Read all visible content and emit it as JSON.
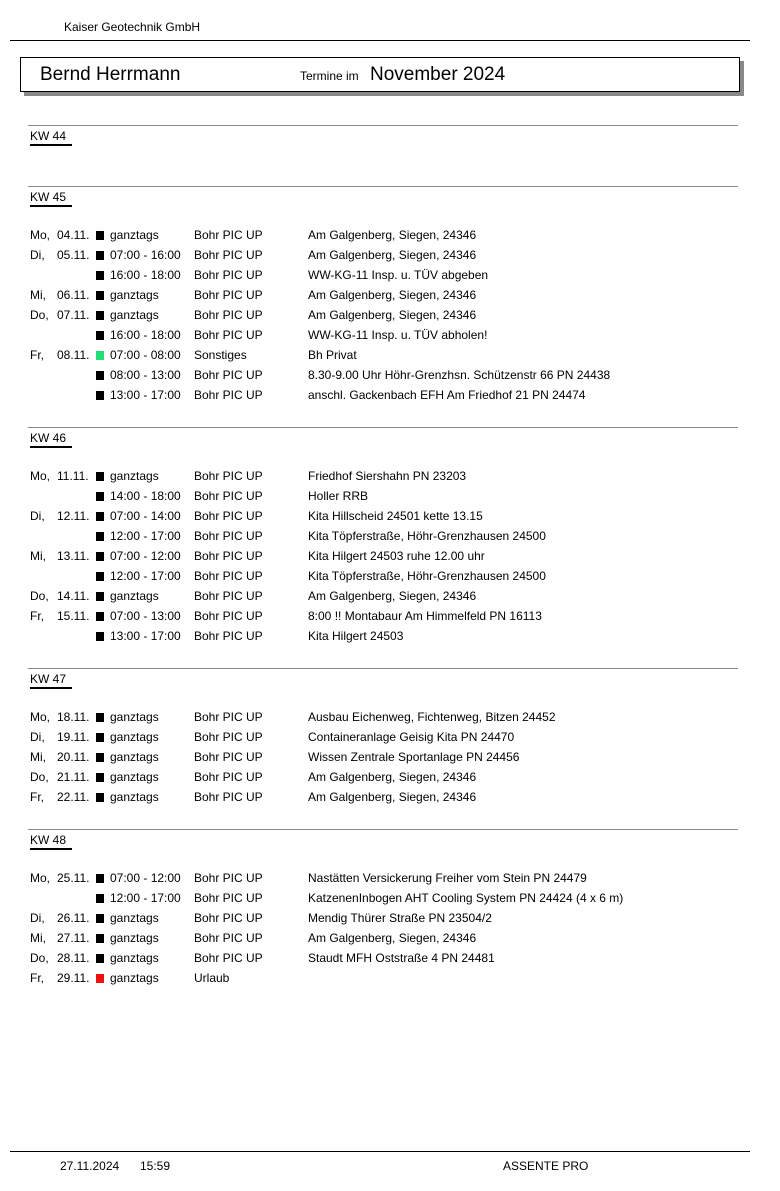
{
  "company": "Kaiser Geotechnik GmbH",
  "header": {
    "name": "Bernd Herrmann",
    "label": "Termine im",
    "month": "November 2024"
  },
  "colors": {
    "default": "#000000",
    "sonstiges": "#22dd77",
    "urlaub": "#ee1111"
  },
  "weeks": [
    {
      "label": "KW 44",
      "rows": []
    },
    {
      "label": "KW 45",
      "rows": [
        {
          "day": "Mo,",
          "date": "04.11.",
          "color": "#000000",
          "time": "ganztags",
          "cat": "Bohr PIC UP",
          "desc": "Am Galgenberg, Siegen, 24346"
        },
        {
          "day": "Di,",
          "date": "05.11.",
          "color": "#000000",
          "time": "07:00 - 16:00",
          "cat": "Bohr PIC UP",
          "desc": "Am Galgenberg, Siegen, 24346"
        },
        {
          "day": "",
          "date": "",
          "color": "#000000",
          "time": "16:00 - 18:00",
          "cat": "Bohr PIC UP",
          "desc": "WW-KG-11 Insp. u. TÜV abgeben"
        },
        {
          "day": "Mi,",
          "date": "06.11.",
          "color": "#000000",
          "time": "ganztags",
          "cat": "Bohr PIC UP",
          "desc": "Am Galgenberg, Siegen, 24346"
        },
        {
          "day": "Do,",
          "date": "07.11.",
          "color": "#000000",
          "time": "ganztags",
          "cat": "Bohr PIC UP",
          "desc": "Am Galgenberg, Siegen, 24346"
        },
        {
          "day": "",
          "date": "",
          "color": "#000000",
          "time": "16:00 - 18:00",
          "cat": "Bohr PIC UP",
          "desc": "WW-KG-11 Insp. u. TÜV abholen!"
        },
        {
          "day": "Fr,",
          "date": "08.11.",
          "color": "#22dd77",
          "time": "07:00 - 08:00",
          "cat": "Sonstiges",
          "desc": "Bh Privat"
        },
        {
          "day": "",
          "date": "",
          "color": "#000000",
          "time": "08:00 - 13:00",
          "cat": "Bohr PIC UP",
          "desc": "8.30-9.00 Uhr Höhr-Grenzhsn. Schützenstr 66 PN 24438"
        },
        {
          "day": "",
          "date": "",
          "color": "#000000",
          "time": "13:00 - 17:00",
          "cat": "Bohr PIC UP",
          "desc": "anschl. Gackenbach EFH Am Friedhof 21 PN 24474"
        }
      ]
    },
    {
      "label": "KW 46",
      "rows": [
        {
          "day": "Mo,",
          "date": "11.11.",
          "color": "#000000",
          "time": "ganztags",
          "cat": "Bohr PIC UP",
          "desc": "Friedhof Siershahn PN 23203"
        },
        {
          "day": "",
          "date": "",
          "color": "#000000",
          "time": "14:00 - 18:00",
          "cat": "Bohr PIC UP",
          "desc": "Holler RRB"
        },
        {
          "day": "Di,",
          "date": "12.11.",
          "color": "#000000",
          "time": "07:00 - 14:00",
          "cat": "Bohr PIC UP",
          "desc": "Kita Hillscheid 24501 kette 13.15"
        },
        {
          "day": "",
          "date": "",
          "color": "#000000",
          "time": "12:00 - 17:00",
          "cat": "Bohr PIC UP",
          "desc": "Kita Töpferstraße, Höhr-Grenzhausen 24500"
        },
        {
          "day": "Mi,",
          "date": "13.11.",
          "color": "#000000",
          "time": "07:00 - 12:00",
          "cat": "Bohr PIC UP",
          "desc": "Kita Hilgert 24503 ruhe 12.00 uhr"
        },
        {
          "day": "",
          "date": "",
          "color": "#000000",
          "time": "12:00 - 17:00",
          "cat": "Bohr PIC UP",
          "desc": "Kita Töpferstraße, Höhr-Grenzhausen 24500"
        },
        {
          "day": "Do,",
          "date": "14.11.",
          "color": "#000000",
          "time": "ganztags",
          "cat": "Bohr PIC UP",
          "desc": "Am Galgenberg, Siegen, 24346"
        },
        {
          "day": "Fr,",
          "date": "15.11.",
          "color": "#000000",
          "time": "07:00 - 13:00",
          "cat": "Bohr PIC UP",
          "desc": "8:00 !! Montabaur Am Himmelfeld PN 16113"
        },
        {
          "day": "",
          "date": "",
          "color": "#000000",
          "time": "13:00 - 17:00",
          "cat": "Bohr PIC UP",
          "desc": "Kita Hilgert 24503"
        }
      ]
    },
    {
      "label": "KW 47",
      "rows": [
        {
          "day": "Mo,",
          "date": "18.11.",
          "color": "#000000",
          "time": "ganztags",
          "cat": "Bohr PIC UP",
          "desc": "Ausbau Eichenweg, Fichtenweg, Bitzen 24452"
        },
        {
          "day": "Di,",
          "date": "19.11.",
          "color": "#000000",
          "time": "ganztags",
          "cat": "Bohr PIC UP",
          "desc": "Containeranlage Geisig Kita PN 24470"
        },
        {
          "day": "Mi,",
          "date": "20.11.",
          "color": "#000000",
          "time": "ganztags",
          "cat": "Bohr PIC UP",
          "desc": "Wissen Zentrale Sportanlage PN 24456"
        },
        {
          "day": "Do,",
          "date": "21.11.",
          "color": "#000000",
          "time": "ganztags",
          "cat": "Bohr PIC UP",
          "desc": "Am Galgenberg, Siegen, 24346"
        },
        {
          "day": "Fr,",
          "date": "22.11.",
          "color": "#000000",
          "time": "ganztags",
          "cat": "Bohr PIC UP",
          "desc": "Am Galgenberg, Siegen, 24346"
        }
      ]
    },
    {
      "label": "KW 48",
      "rows": [
        {
          "day": "Mo,",
          "date": "25.11.",
          "color": "#000000",
          "time": "07:00 - 12:00",
          "cat": "Bohr PIC UP",
          "desc": "Nastätten Versickerung Freiher vom Stein PN 24479"
        },
        {
          "day": "",
          "date": "",
          "color": "#000000",
          "time": "12:00 - 17:00",
          "cat": "Bohr PIC UP",
          "desc": "KatzenenInbogen AHT Cooling System PN 24424 (4 x 6 m)"
        },
        {
          "day": "Di,",
          "date": "26.11.",
          "color": "#000000",
          "time": "ganztags",
          "cat": "Bohr PIC UP",
          "desc": "Mendig Thürer Straße PN 23504/2"
        },
        {
          "day": "Mi,",
          "date": "27.11.",
          "color": "#000000",
          "time": "ganztags",
          "cat": "Bohr PIC UP",
          "desc": "Am Galgenberg, Siegen, 24346"
        },
        {
          "day": "Do,",
          "date": "28.11.",
          "color": "#000000",
          "time": "ganztags",
          "cat": "Bohr PIC UP",
          "desc": "Staudt MFH Oststraße 4 PN 24481"
        },
        {
          "day": "Fr,",
          "date": "29.11.",
          "color": "#ee1111",
          "time": "ganztags",
          "cat": "Urlaub",
          "desc": ""
        }
      ]
    }
  ],
  "footer": {
    "date": "27.11.2024",
    "time": "15:59",
    "app": "ASSENTE PRO"
  }
}
